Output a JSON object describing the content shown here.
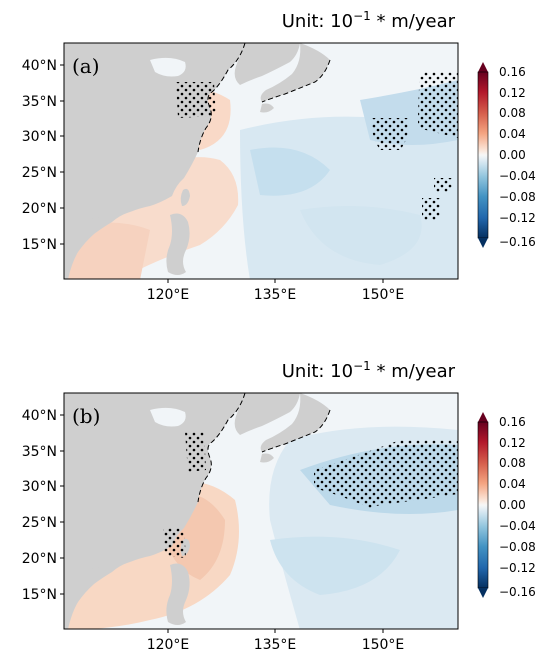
{
  "panels": [
    {
      "letter": "(a)",
      "unit_prefix": "Unit: 10",
      "unit_exp": "−1",
      "unit_suffix": " * m/year",
      "lat_labels": [
        "40°N",
        "35°N",
        "30°N",
        "25°N",
        "20°N",
        "15°N"
      ],
      "lon_labels": [
        "120°E",
        "135°E",
        "150°E"
      ],
      "colorbar_ticks": [
        "0.16",
        "0.12",
        "0.08",
        "0.04",
        "0.00",
        "−0.04",
        "−0.08",
        "−0.12",
        "−0.16"
      ]
    },
    {
      "letter": "(b)",
      "unit_prefix": "Unit: 10",
      "unit_exp": "−1",
      "unit_suffix": " * m/year",
      "lat_labels": [
        "40°N",
        "35°N",
        "30°N",
        "25°N",
        "20°N",
        "15°N"
      ],
      "lon_labels": [
        "120°E",
        "135°E",
        "150°E"
      ],
      "colorbar_ticks": [
        "0.16",
        "0.12",
        "0.08",
        "0.04",
        "0.00",
        "−0.04",
        "−0.08",
        "−0.12",
        "−0.16"
      ]
    }
  ],
  "colors": {
    "land": "#cfcfcf",
    "positive": "#f6d6c6",
    "negative": "#c9e2ef",
    "stipple": "#000000"
  }
}
